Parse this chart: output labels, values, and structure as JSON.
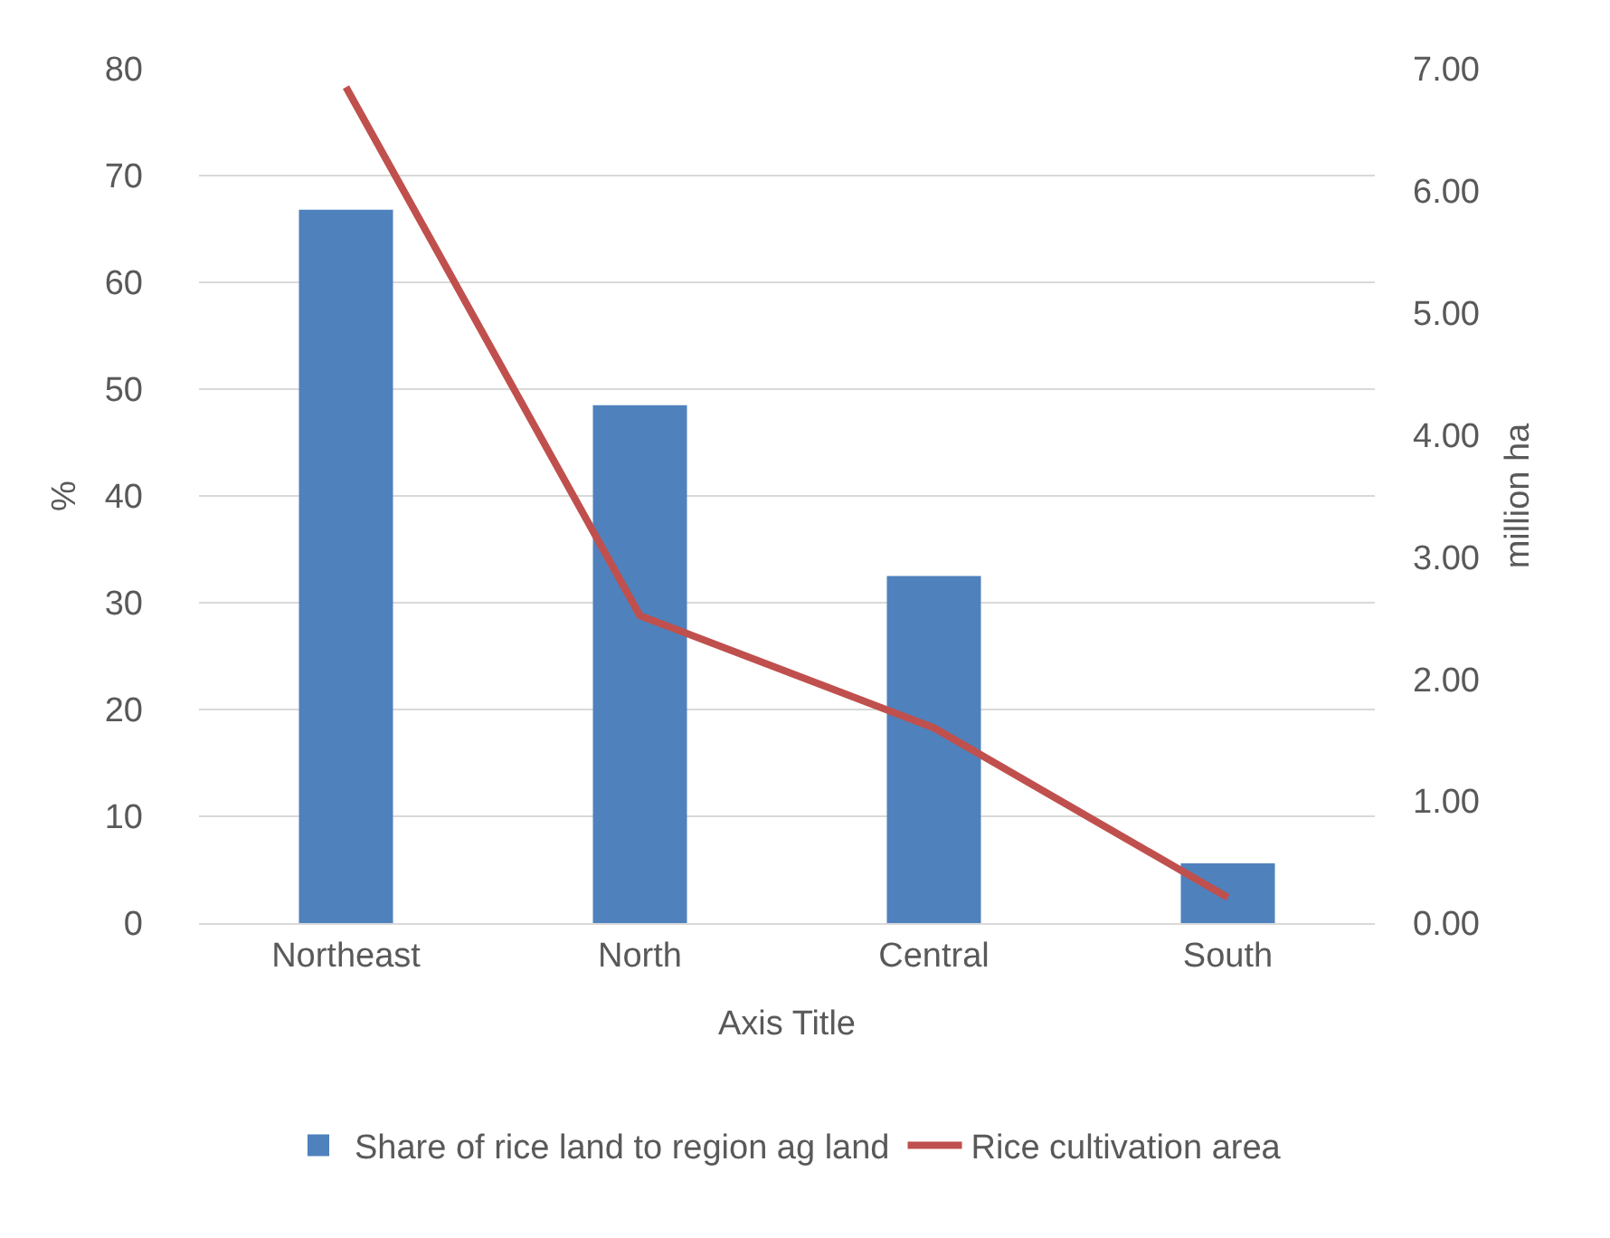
{
  "chart_data": {
    "type": "bar",
    "xlabel": "Axis Title",
    "ylabel": "%",
    "y2label": "million ha",
    "categories": [
      "Northeast",
      "North",
      "Central",
      "South"
    ],
    "series": [
      {
        "name": "Share of rice land to region ag land",
        "color": "#4f81bd",
        "values": [
          66.8,
          48.5,
          32.5,
          5.6
        ]
      },
      {
        "name": "Rice cultivation area",
        "type": "line",
        "axis": "y2",
        "color": "#c0504d",
        "values": [
          6.85,
          2.52,
          1.6,
          0.21
        ]
      }
    ],
    "ylim": [
      0,
      80
    ],
    "yticks": [
      0,
      10,
      20,
      30,
      40,
      50,
      60,
      70,
      80
    ],
    "y2lim": [
      0,
      7
    ],
    "y2ticks": [
      {
        "value": 0,
        "label": "0.00"
      },
      {
        "value": 1,
        "label": "1.00"
      },
      {
        "value": 2,
        "label": "2.00"
      },
      {
        "value": 3,
        "label": "3.00"
      },
      {
        "value": 4,
        "label": "4.00"
      },
      {
        "value": 5,
        "label": "5.00"
      },
      {
        "value": 6,
        "label": "6.00"
      },
      {
        "value": 7,
        "label": "7.00"
      }
    ],
    "grid": "y",
    "legend": "bottom",
    "marker": "none",
    "line_style": "solid"
  }
}
